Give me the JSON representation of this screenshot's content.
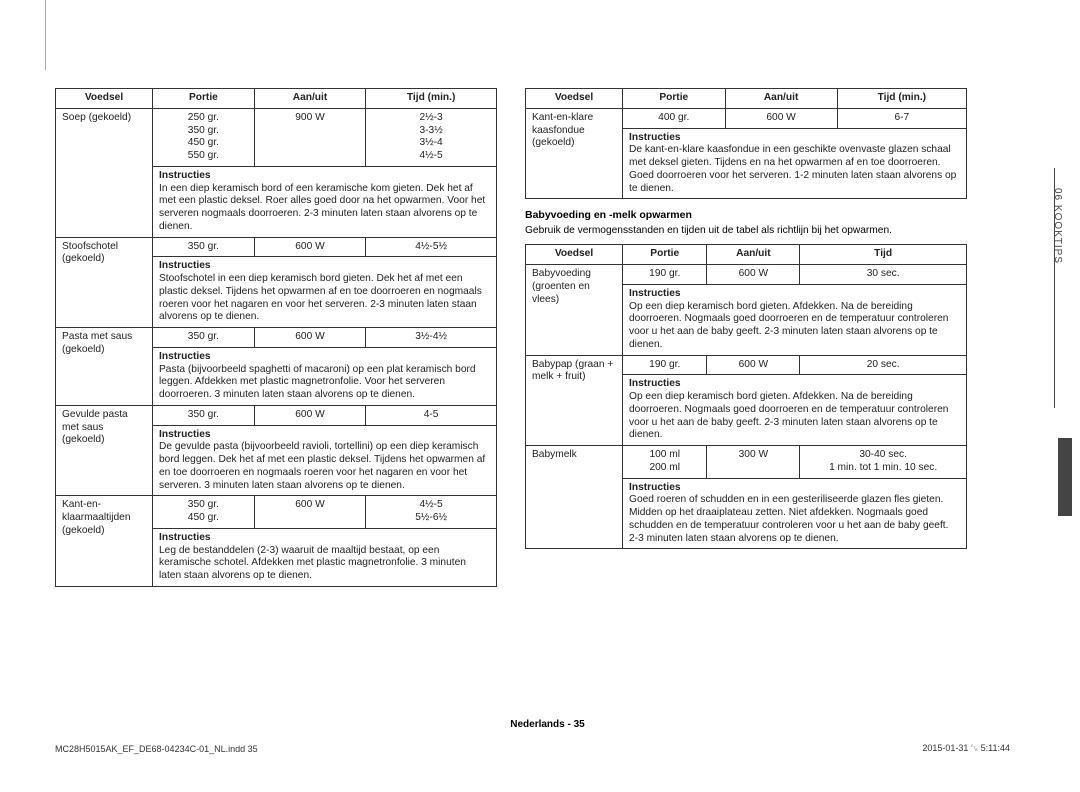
{
  "sidetab": "06  KOOKTIPS",
  "footer_center": "Nederlands - 35",
  "footer_left": "MC28H5015AK_EF_DE68-04234C-01_NL.indd   35",
  "footer_right": "2015-01-31   ␗ 5:11:44",
  "headers": {
    "food": "Voedsel",
    "portion": "Portie",
    "power": "Aan/uit",
    "time_min": "Tijd (min.)",
    "time": "Tijd"
  },
  "instr_label": "Instructies",
  "left_rows": [
    {
      "food": "Soep (gekoeld)",
      "data": [
        [
          "250 gr.",
          "900 W",
          "2½-3"
        ],
        [
          "350 gr.",
          "",
          "3-3½"
        ],
        [
          "450 gr.",
          "",
          "3½-4"
        ],
        [
          "550 gr.",
          "",
          "4½-5"
        ]
      ],
      "instr": "In een diep keramisch bord of een keramische kom gieten. Dek het af met een plastic deksel. Roer alles goed door na het opwarmen. Voor het serveren nogmaals doorroeren. 2-3 minuten laten staan alvorens op te dienen."
    },
    {
      "food": "Stoofschotel (gekoeld)",
      "data": [
        [
          "350 gr.",
          "600 W",
          "4½-5½"
        ]
      ],
      "instr": "Stoofschotel in een diep keramisch bord gieten. Dek het af met een plastic deksel. Tijdens het opwarmen af en toe doorroeren en nogmaals roeren voor het nagaren en voor het serveren. 2-3 minuten laten staan alvorens op te dienen."
    },
    {
      "food": "Pasta met saus (gekoeld)",
      "data": [
        [
          "350 gr.",
          "600 W",
          "3½-4½"
        ]
      ],
      "instr": "Pasta (bijvoorbeeld spaghetti of macaroni) op een plat keramisch bord leggen. Afdekken met plastic magnetronfolie. Voor het serveren doorroeren. 3 minuten laten staan alvorens op te dienen."
    },
    {
      "food": "Gevulde pasta met saus (gekoeld)",
      "data": [
        [
          "350 gr.",
          "600 W",
          "4-5"
        ]
      ],
      "instr": "De gevulde pasta (bijvoorbeeld ravioli, tortellini) op een diep keramisch bord leggen. Dek het af met een plastic deksel. Tijdens het opwarmen af en toe doorroeren en nogmaals roeren voor het nagaren en voor het serveren. 3 minuten laten staan alvorens op te dienen."
    },
    {
      "food": "Kant-en-klaarmaaltijden (gekoeld)",
      "data": [
        [
          "350 gr.",
          "600 W",
          "4½-5"
        ],
        [
          "450 gr.",
          "",
          "5½-6½"
        ]
      ],
      "instr": "Leg de bestanddelen (2-3) waaruit de maaltijd bestaat, op een keramische schotel. Afdekken met plastic magnetronfolie. 3 minuten laten staan alvorens op te dienen."
    }
  ],
  "right_top": [
    {
      "food": "Kant-en-klare kaasfondue (gekoeld)",
      "data": [
        [
          "400 gr.",
          "600 W",
          "6-7"
        ]
      ],
      "instr": "De kant-en-klare kaasfondue in een geschikte ovenvaste glazen schaal met deksel gieten. Tijdens en na het opwarmen af en toe doorroeren. Goed doorroeren voor het serveren. 1-2 minuten laten staan alvorens op te dienen."
    }
  ],
  "section2": {
    "title": "Babyvoeding en -melk opwarmen",
    "sub": "Gebruik de vermogensstanden en tijden uit de tabel als richtlijn bij het opwarmen."
  },
  "right_bottom": [
    {
      "food": "Babyvoeding (groenten en vlees)",
      "data": [
        [
          "190 gr.",
          "600 W",
          "30 sec."
        ]
      ],
      "instr": "Op een diep keramisch bord gieten. Afdekken. Na de bereiding doorroeren. Nogmaals goed doorroeren en de temperatuur controleren voor u het aan de baby geeft. 2-3 minuten laten staan alvorens op te dienen."
    },
    {
      "food": "Babypap (graan + melk + fruit)",
      "data": [
        [
          "190 gr.",
          "600 W",
          "20 sec."
        ]
      ],
      "instr": "Op een diep keramisch bord gieten. Afdekken. Na de bereiding doorroeren. Nogmaals goed doorroeren en de temperatuur controleren voor u het aan de baby geeft. 2-3 minuten laten staan alvorens op te dienen."
    },
    {
      "food": "Babymelk",
      "data": [
        [
          "100 ml",
          "300 W",
          "30-40 sec."
        ],
        [
          "200 ml",
          "",
          "1 min. tot 1 min. 10 sec."
        ]
      ],
      "instr": "Goed roeren of schudden en in een gesteriliseerde glazen fles gieten. Midden op het draaiplateau zetten. Niet afdekken. Nogmaals goed schudden en de temperatuur controleren voor u het aan de baby geeft. 2-3 minuten laten staan alvorens op te dienen."
    }
  ],
  "colors": {
    "border": "#333333",
    "text": "#222222",
    "tab": "#444444"
  }
}
